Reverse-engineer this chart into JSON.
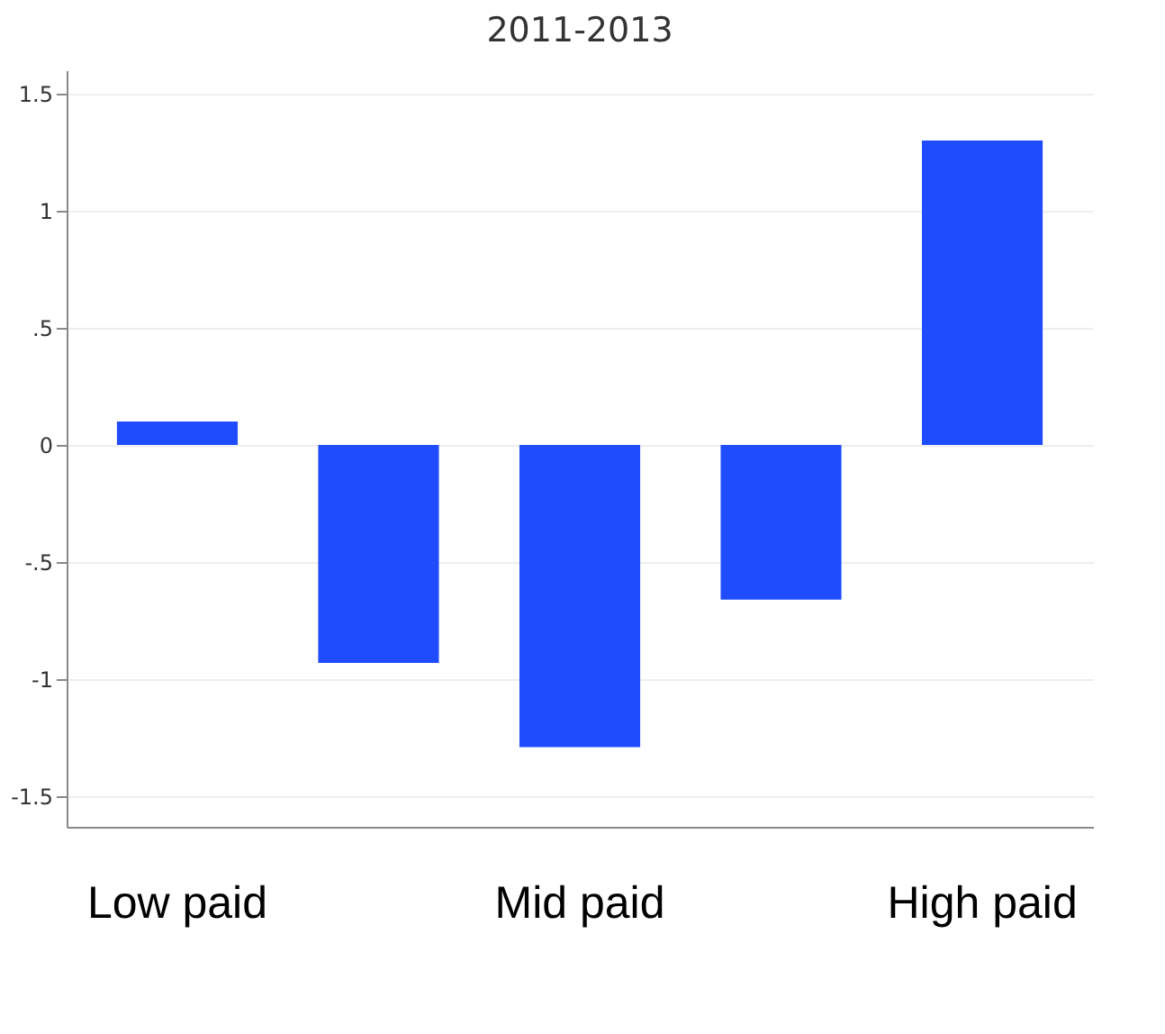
{
  "chart_data": {
    "type": "bar",
    "title": "2011-2013",
    "categories": [
      "Low paid",
      null,
      "Mid paid",
      null,
      "High paid"
    ],
    "values": [
      0.1,
      -0.93,
      -1.29,
      -0.66,
      1.3
    ],
    "color": "#1f4cff",
    "ylim": [
      -1.63,
      1.6
    ],
    "yticks": [
      {
        "value": -1.5,
        "label": "-1.5"
      },
      {
        "value": -1,
        "label": "-1"
      },
      {
        "value": -0.5,
        "label": "-.5"
      },
      {
        "value": 0,
        "label": "0"
      },
      {
        "value": 0.5,
        "label": ".5"
      },
      {
        "value": 1,
        "label": "1"
      },
      {
        "value": 1.5,
        "label": "1.5"
      }
    ],
    "grid": "y"
  }
}
